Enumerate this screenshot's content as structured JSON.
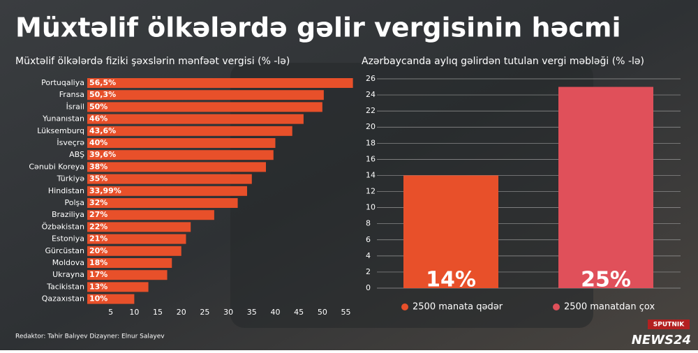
{
  "title": "Müxtəlif ölkələrdə gəlir vergisinin həcmi",
  "credits": "Redaktor: Tahir Balıyev  Dizayner: Elnur Salayev",
  "logo": "NEWS24",
  "source_logo": "SPUTNIK",
  "chart_data": [
    {
      "type": "hbar",
      "title": "Müxtəlif ölkələrdə fiziki şəxslərin mənfəət vergisi (% -lə)",
      "categories": [
        "Portuqaliya",
        "Fransa",
        "İsrail",
        "Yunanıstan",
        "Lüksemburq",
        "İsveçrə",
        "ABŞ",
        "Cənubi Koreya",
        "Türkiyə",
        "Hindistan",
        "Polşa",
        "Braziliya",
        "Özbəkistan",
        "Estoniya",
        "Gürcüstan",
        "Moldova",
        "Ukrayna",
        "Tacikistan",
        "Qazaxıstan"
      ],
      "values": [
        56.5,
        50.3,
        50,
        46,
        43.6,
        40,
        39.6,
        38,
        35,
        33.99,
        32,
        27,
        22,
        21,
        20,
        18,
        17,
        13,
        10
      ],
      "value_labels": [
        "56,5%",
        "50,3%",
        "50%",
        "46%",
        "43,6%",
        "40%",
        "39,6%",
        "38%",
        "35%",
        "33,99%",
        "32%",
        "27%",
        "22%",
        "21%",
        "20%",
        "18%",
        "17%",
        "13%",
        "10%"
      ],
      "color": "#e8502a",
      "xlim": [
        0,
        57
      ],
      "xticks": [
        5,
        10,
        15,
        20,
        25,
        30,
        35,
        40,
        45,
        50,
        55
      ]
    },
    {
      "type": "bar",
      "title": "Azərbaycanda aylıq gəlirdən tutulan vergi məbləği (% -lə)",
      "series": [
        {
          "name": "2500 manata qədər",
          "color": "#e8502a",
          "values": [
            14
          ],
          "value_labels": [
            "14%"
          ]
        },
        {
          "name": "2500 manatdan çox",
          "color": "#e0505a",
          "values": [
            25
          ],
          "value_labels": [
            "25%"
          ]
        }
      ],
      "ylim": [
        0,
        26
      ],
      "yticks": [
        0,
        2,
        4,
        6,
        8,
        10,
        12,
        14,
        16,
        18,
        20,
        22,
        24,
        26
      ],
      "grid": true
    }
  ]
}
